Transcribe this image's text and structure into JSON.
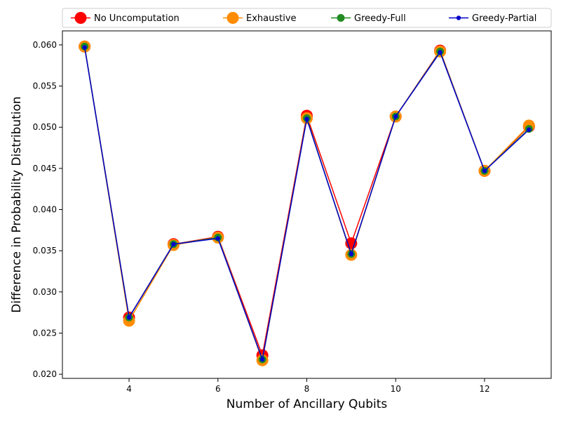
{
  "chart_data": {
    "type": "line",
    "xlabel": "Number of Ancillary Qubits",
    "ylabel": "Difference in Probability Distribution",
    "x": [
      3,
      4,
      5,
      6,
      7,
      8,
      9,
      10,
      11,
      12,
      13
    ],
    "xlim": [
      2.5,
      13.5
    ],
    "ylim": [
      0.0195,
      0.0617
    ],
    "xticks": [
      4,
      6,
      8,
      10,
      12
    ],
    "yticks": [
      0.02,
      0.025,
      0.03,
      0.035,
      0.04,
      0.045,
      0.05,
      0.055,
      0.06
    ],
    "xtick_labels": [
      "4",
      "6",
      "8",
      "10",
      "12"
    ],
    "ytick_labels": [
      "0.020",
      "0.025",
      "0.030",
      "0.035",
      "0.040",
      "0.045",
      "0.050",
      "0.055",
      "0.060"
    ],
    "grid": false,
    "legend_position": "top, outside plot, single row",
    "series": [
      {
        "name": "No Uncomputation",
        "color": "#ff0000",
        "marker": "large",
        "values": [
          0.0598,
          0.0269,
          0.0358,
          0.0367,
          0.0223,
          0.0514,
          0.0359,
          0.0513,
          0.0593,
          0.0447,
          0.0501
        ]
      },
      {
        "name": "Exhaustive",
        "color": "#ff8c00",
        "marker": "large",
        "values": [
          0.0598,
          0.0265,
          0.0357,
          0.0366,
          0.0217,
          0.0511,
          0.0345,
          0.0513,
          0.0592,
          0.0447,
          0.0502
        ]
      },
      {
        "name": "Greedy-Full",
        "color": "#228b22",
        "marker": "medium",
        "values": [
          0.0598,
          0.0269,
          0.0358,
          0.0366,
          0.0218,
          0.0511,
          0.0346,
          0.0513,
          0.0592,
          0.0447,
          0.0498
        ]
      },
      {
        "name": "Greedy-Partial",
        "color": "#0000cd",
        "marker": "small",
        "values": [
          0.0597,
          0.0269,
          0.0358,
          0.0365,
          0.0218,
          0.051,
          0.0346,
          0.0513,
          0.0591,
          0.0447,
          0.0497
        ]
      }
    ]
  }
}
